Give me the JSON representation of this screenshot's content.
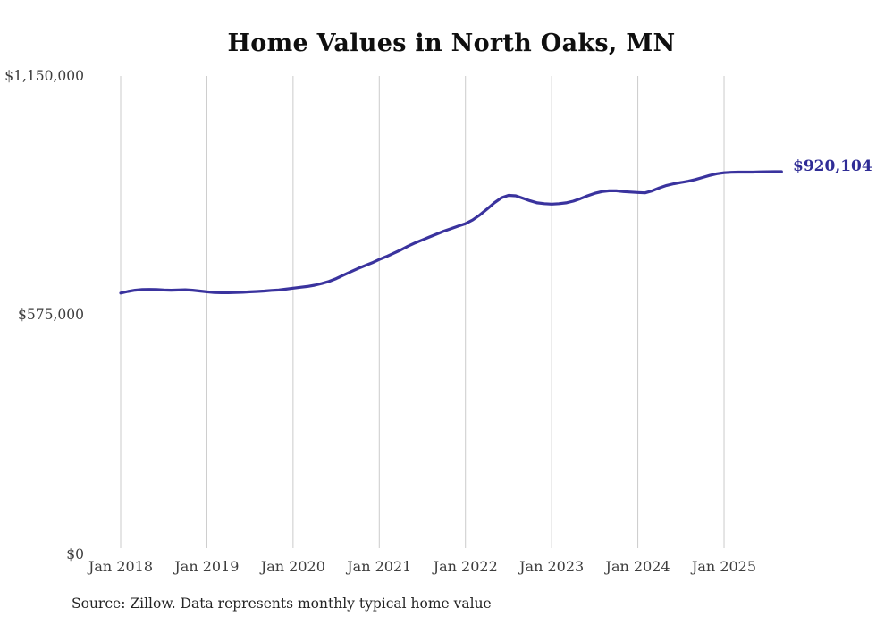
{
  "chart": {
    "title": "Home Values in North Oaks, MN",
    "end_label": "$920,104",
    "source_note": "Source: Zillow. Data represents monthly typical home value",
    "y_ticks": [
      "$1,150,000",
      "$575,000",
      "$0"
    ],
    "x_ticks": [
      "Jan 2018",
      "Jan 2019",
      "Jan 2020",
      "Jan 2021",
      "Jan 2022",
      "Jan 2023",
      "Jan 2024",
      "Jan 2025"
    ]
  },
  "colors": {
    "line": "#3a339e",
    "end_label_text": "#2f2c96",
    "gridline": "#cbcbcb",
    "axis_text": "#3d3d3d",
    "title_text": "#0f0f0f",
    "background": "#ffffff"
  },
  "chart_data": {
    "type": "line",
    "title": "Home Values in North Oaks, MN",
    "series_name": "Typical home value (USD)",
    "frequency": "monthly",
    "start_month": "Jan 2018",
    "end_month": "Sep 2025",
    "latest_value": 920104,
    "latest_value_label": "$920,104",
    "ylim": [
      0,
      1150000
    ],
    "y_tick_values": [
      1150000,
      575000,
      0
    ],
    "x_tick_labels": [
      "Jan 2018",
      "Jan 2019",
      "Jan 2020",
      "Jan 2021",
      "Jan 2022",
      "Jan 2023",
      "Jan 2024",
      "Jan 2025"
    ],
    "grid": "vertical-only",
    "legend": "none",
    "values": [
      628000,
      632000,
      635000,
      636500,
      637000,
      636500,
      635500,
      635000,
      635500,
      636000,
      635000,
      633000,
      631000,
      629500,
      629000,
      629000,
      629500,
      630000,
      631000,
      632000,
      633000,
      634500,
      635500,
      637500,
      640000,
      642000,
      644000,
      647000,
      651000,
      656000,
      663000,
      671000,
      679000,
      687000,
      694000,
      701000,
      709000,
      716000,
      724000,
      732000,
      741000,
      749000,
      756000,
      763000,
      770000,
      777000,
      783000,
      789000,
      795000,
      804000,
      816000,
      830000,
      845000,
      857000,
      863000,
      862000,
      856000,
      850000,
      845000,
      843000,
      842000,
      843000,
      845000,
      849000,
      855000,
      862000,
      868000,
      872000,
      874000,
      874000,
      872000,
      871000,
      870000,
      869000,
      874000,
      881000,
      887000,
      891000,
      894000,
      897000,
      901000,
      906000,
      911000,
      915000,
      917500,
      918500,
      919000,
      919000,
      919000,
      919500,
      919800,
      920000,
      920104
    ]
  }
}
